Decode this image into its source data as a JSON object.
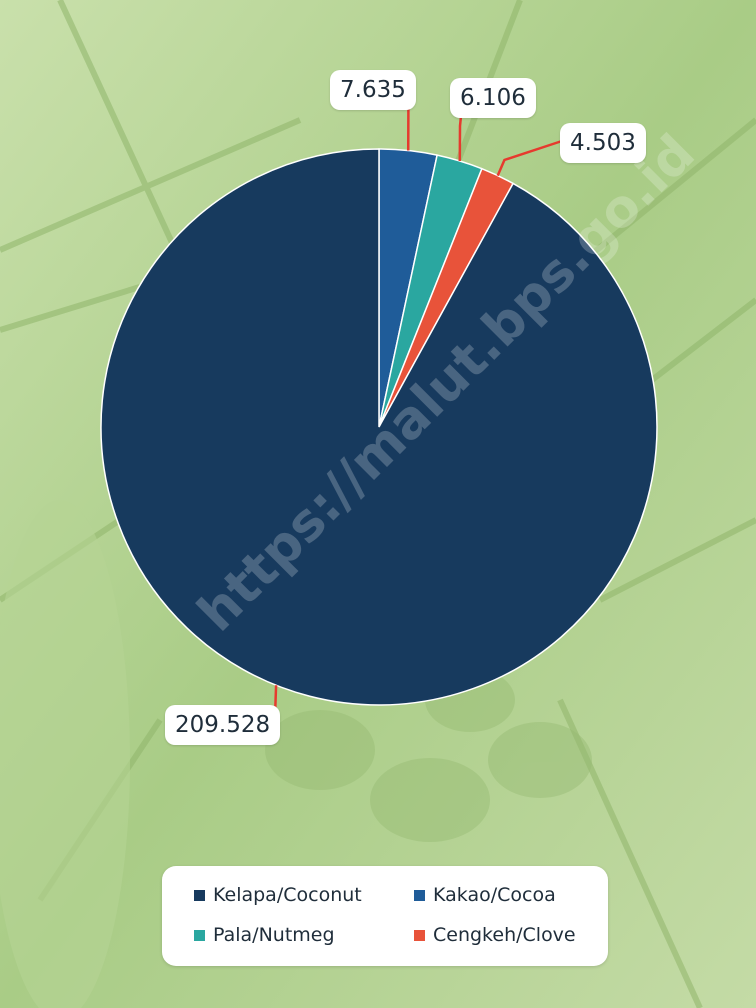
{
  "chart_data": {
    "type": "pie",
    "title": "",
    "slices": [
      {
        "label": "Kelapa/Coconut",
        "value": 209.528,
        "display": "209.528",
        "color": "#173a5e"
      },
      {
        "label": "Kakao/Cocoa",
        "value": 7.635,
        "display": "7.635",
        "color": "#1f5c99"
      },
      {
        "label": "Pala/Nutmeg",
        "value": 6.106,
        "display": "6.106",
        "color": "#2aa7a0"
      },
      {
        "label": "Cengkeh/Clove",
        "value": 4.503,
        "display": "4.503",
        "color": "#e8533a"
      }
    ],
    "start": "12 o'clock, clockwise, smaller slices first",
    "legend_position": "bottom",
    "callout_line_color": "#e63a2e"
  },
  "watermark": "https://malut.bps.go.id"
}
